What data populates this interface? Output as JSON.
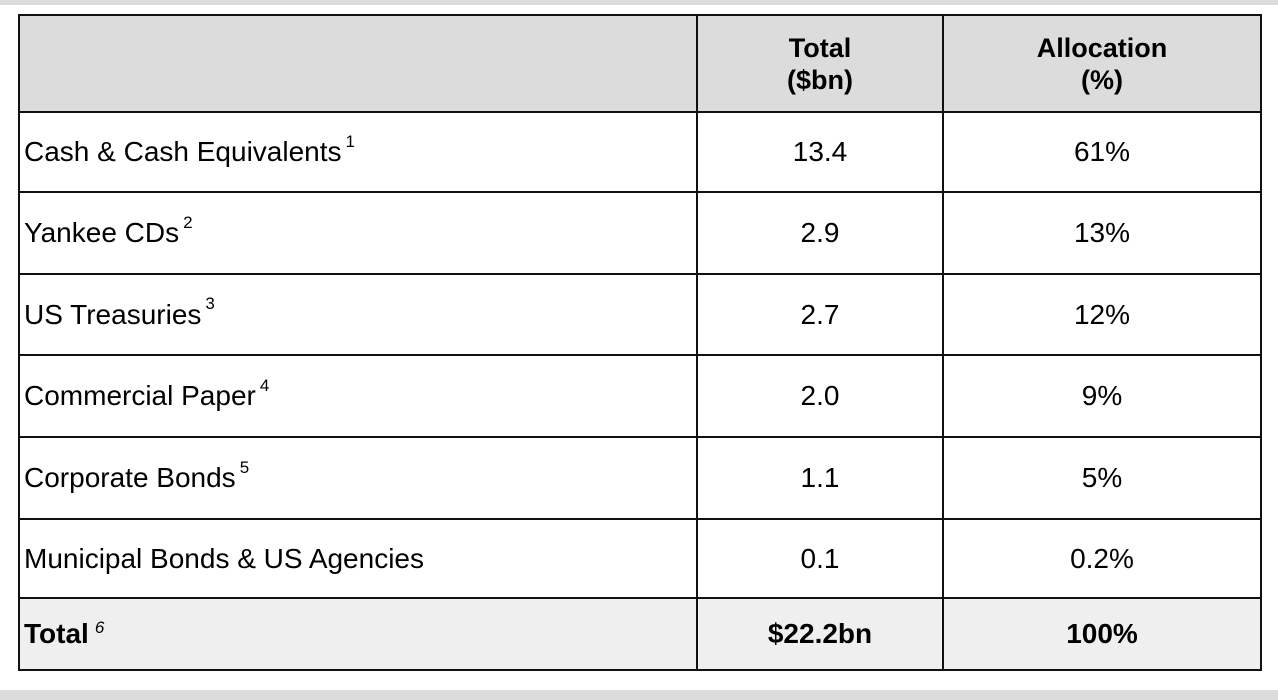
{
  "table": {
    "headers": {
      "label": "",
      "total_line1": "Total",
      "total_line2": "($bn)",
      "allocation_line1": "Allocation",
      "allocation_line2": "(%)"
    },
    "rows": [
      {
        "label": "Cash & Cash Equivalents",
        "note": "1",
        "total": "13.4",
        "allocation": "61%"
      },
      {
        "label": "Yankee CDs",
        "note": "2",
        "total": "2.9",
        "allocation": "13%"
      },
      {
        "label": "US Treasuries",
        "note": "3",
        "total": "2.7",
        "allocation": "12%"
      },
      {
        "label": "Commercial Paper",
        "note": "4",
        "total": "2.0",
        "allocation": "9%"
      },
      {
        "label": "Corporate Bonds",
        "note": "5",
        "total": "1.1",
        "allocation": "5%"
      },
      {
        "label": "Municipal Bonds & US Agencies",
        "note": "",
        "total": "0.1",
        "allocation": "0.2%"
      }
    ],
    "total_row": {
      "label": "Total",
      "note": "6",
      "total": "$22.2bn",
      "allocation": "100%"
    }
  },
  "colors": {
    "header_bg": "#dcdcdc",
    "total_bg": "#efefef",
    "border": "#111111"
  }
}
